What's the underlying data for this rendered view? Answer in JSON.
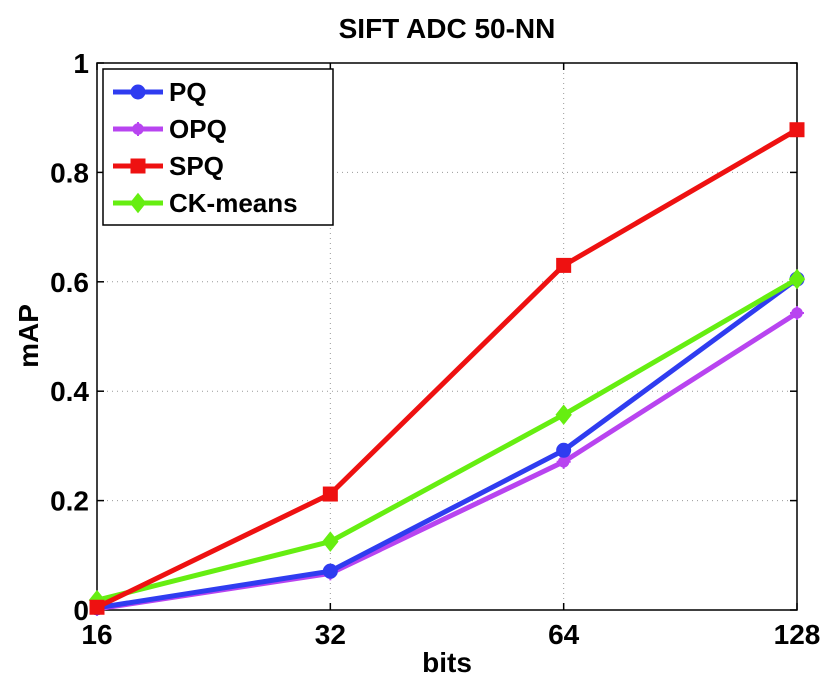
{
  "chart_data": {
    "type": "line",
    "title": "SIFT ADC 50-NN",
    "xlabel": "bits",
    "ylabel": "mAP",
    "x": [
      16,
      32,
      64,
      128
    ],
    "x_scale": "log2",
    "xlim": [
      16,
      128
    ],
    "ylim": [
      0,
      1
    ],
    "xticks": [
      "16",
      "32",
      "64",
      "128"
    ],
    "yticks": [
      "0",
      "0.2",
      "0.4",
      "0.6",
      "0.8",
      "1"
    ],
    "grid": true,
    "legend_position": "top-left",
    "series": [
      {
        "name": "PQ",
        "color": "#2f3cf0",
        "marker": "circle",
        "values": [
          0.004,
          0.071,
          0.292,
          0.605
        ]
      },
      {
        "name": "OPQ",
        "color": "#b844f0",
        "marker": "star",
        "values": [
          0.002,
          0.067,
          0.271,
          0.543
        ]
      },
      {
        "name": "SPQ",
        "color": "#ee1111",
        "marker": "square",
        "values": [
          0.005,
          0.212,
          0.63,
          0.878
        ]
      },
      {
        "name": "CK-means",
        "color": "#66ee11",
        "marker": "diamond",
        "values": [
          0.018,
          0.125,
          0.357,
          0.605
        ]
      }
    ]
  }
}
